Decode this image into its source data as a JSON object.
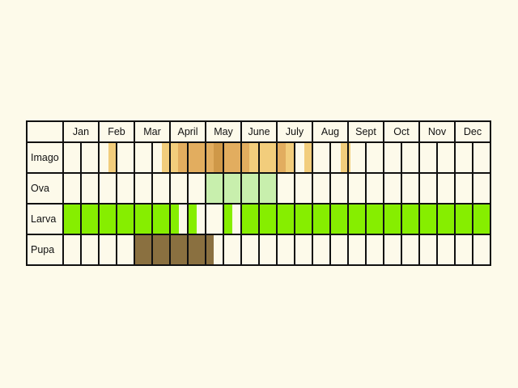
{
  "chart_data": {
    "type": "table",
    "title": "",
    "months": [
      "Jan",
      "Feb",
      "Mar",
      "April",
      "May",
      "June",
      "July",
      "Aug",
      "Sept",
      "Oct",
      "Nov",
      "Dec"
    ],
    "rows": [
      "Imago",
      "Ova",
      "Larva",
      "Pupa"
    ],
    "colors": {
      "background": "#fdfaea",
      "imago_light": "#f2cd7c",
      "imago_mid": "#e2ad5f",
      "imago_dark": "#cf9848",
      "ova": "#c8efad",
      "larva": "#86ee00",
      "pupa": "#8a7040",
      "grid": "#111111"
    },
    "note": "Each month is split into two half-month columns (24 columns). Segments give start/end in units of half-month columns (0-24).",
    "segments": {
      "Imago": [
        {
          "start": 2.55,
          "end": 2.95,
          "color": "imago_light"
        },
        {
          "start": 5.55,
          "end": 5.95,
          "color": "imago_light"
        },
        {
          "start": 6.0,
          "end": 6.45,
          "color": "imago_light"
        },
        {
          "start": 6.45,
          "end": 7.0,
          "color": "imago_mid"
        },
        {
          "start": 7.0,
          "end": 8.0,
          "color": "imago_mid"
        },
        {
          "start": 8.0,
          "end": 8.45,
          "color": "imago_mid"
        },
        {
          "start": 8.45,
          "end": 8.95,
          "color": "imago_dark"
        },
        {
          "start": 8.95,
          "end": 9.0,
          "color": "imago_mid"
        },
        {
          "start": 9.0,
          "end": 10.0,
          "color": "imago_mid"
        },
        {
          "start": 10.0,
          "end": 10.45,
          "color": "imago_mid"
        },
        {
          "start": 10.45,
          "end": 11.0,
          "color": "imago_light"
        },
        {
          "start": 11.0,
          "end": 12.0,
          "color": "imago_light"
        },
        {
          "start": 12.0,
          "end": 12.5,
          "color": "imago_mid"
        },
        {
          "start": 12.5,
          "end": 13.0,
          "color": "imago_light"
        },
        {
          "start": 13.55,
          "end": 13.95,
          "color": "imago_light"
        },
        {
          "start": 15.6,
          "end": 16.0,
          "color": "imago_light"
        },
        {
          "start": 16.0,
          "end": 16.15,
          "color": "imago_light"
        }
      ],
      "Ova": [
        {
          "start": 8.0,
          "end": 12.0,
          "color": "ova"
        }
      ],
      "Larva": [
        {
          "start": 0.0,
          "end": 6.5,
          "color": "larva"
        },
        {
          "start": 6.5,
          "end": 7.0,
          "color": "background"
        },
        {
          "start": 7.0,
          "end": 7.5,
          "color": "larva"
        },
        {
          "start": 7.5,
          "end": 8.0,
          "color": "background"
        },
        {
          "start": 8.0,
          "end": 9.0,
          "color": "background"
        },
        {
          "start": 9.0,
          "end": 9.5,
          "color": "larva"
        },
        {
          "start": 9.5,
          "end": 10.0,
          "color": "background"
        },
        {
          "start": 10.0,
          "end": 24.0,
          "color": "larva"
        }
      ],
      "Pupa": [
        {
          "start": 4.0,
          "end": 8.45,
          "color": "pupa"
        }
      ]
    }
  }
}
